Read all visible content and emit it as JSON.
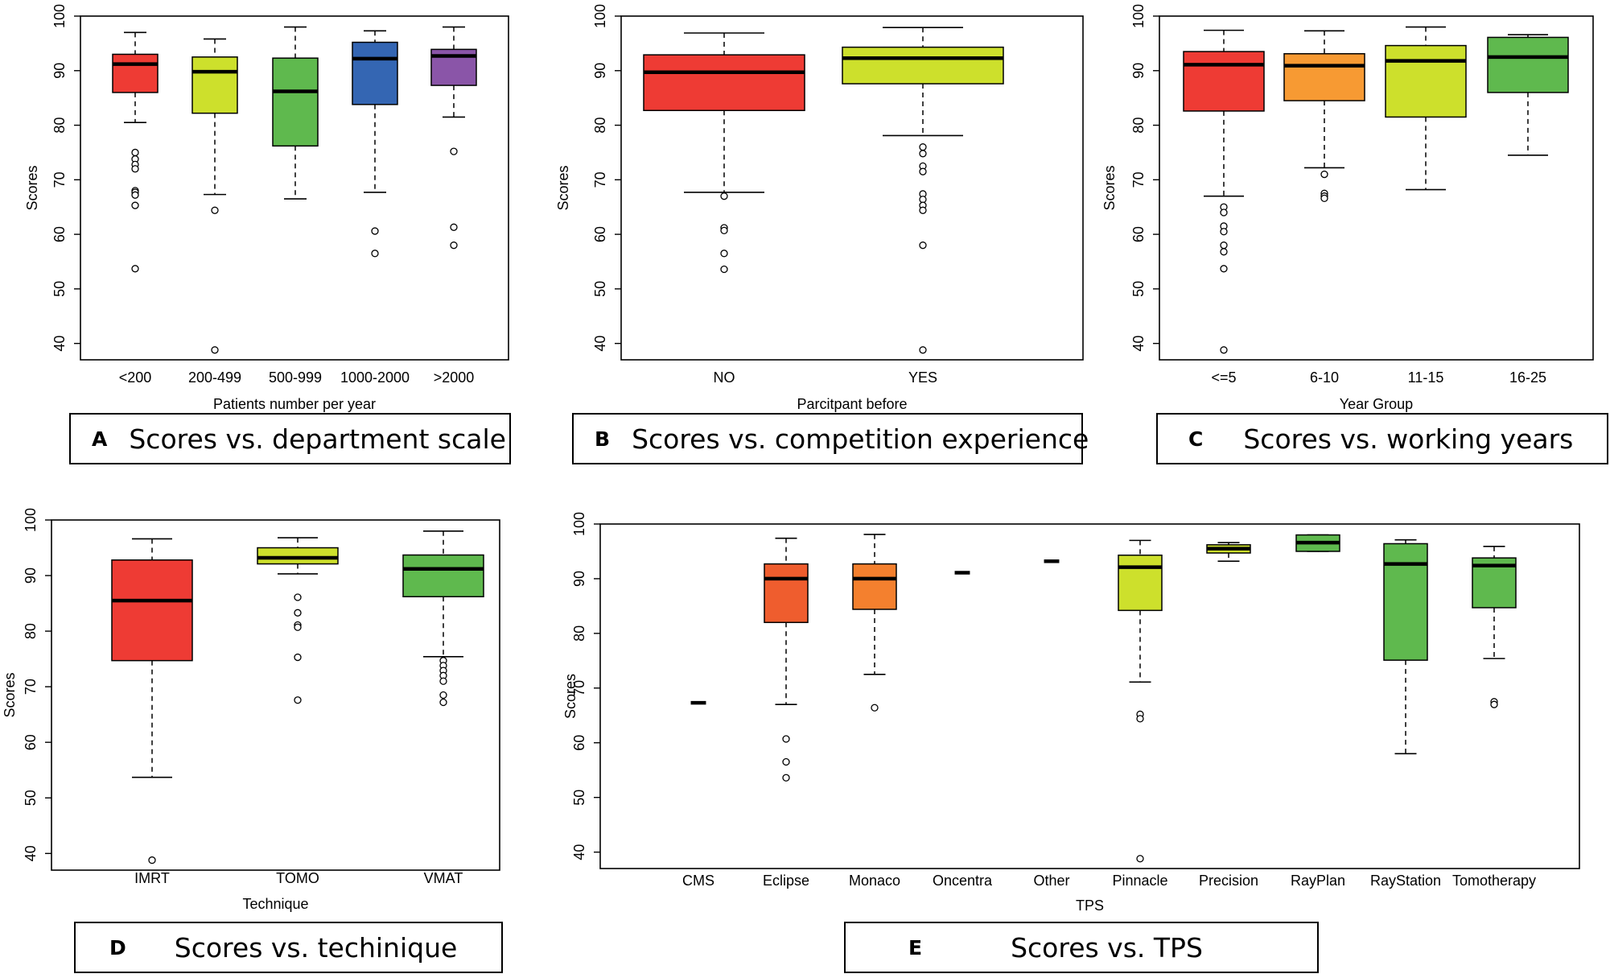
{
  "colors": {
    "red": "#ee3b34",
    "lime": "#cde02c",
    "green": "#5fb94e",
    "blue": "#3466b3",
    "purple": "#8a55a8",
    "orange": "#f79a33",
    "orange_red": "#ef5d2e",
    "orange2": "#f4802e"
  },
  "captions": [
    {
      "letter": "A",
      "text": "Scores vs. department scale"
    },
    {
      "letter": "B",
      "text": "Scores vs. competition experience"
    },
    {
      "letter": "C",
      "text": "Scores vs. working years"
    },
    {
      "letter": "D",
      "text": "Scores vs. techinique"
    },
    {
      "letter": "E",
      "text": "Scores vs. TPS"
    }
  ],
  "chart_data": [
    {
      "id": "A",
      "type": "boxplot",
      "ylabel": "Scores",
      "xlabel": "Patients number per year",
      "ylim": [
        37,
        100
      ],
      "yticks": [
        40,
        50,
        60,
        70,
        80,
        90,
        100
      ],
      "categories": [
        "<200",
        "200-499",
        "500-999",
        "1000-2000",
        ">2000"
      ],
      "boxes": [
        {
          "label": "<200",
          "color": "red",
          "min": 80.5,
          "q1": 86,
          "median": 91.2,
          "q3": 93,
          "max": 97,
          "outliers": [
            75,
            73.8,
            72.8,
            72,
            68,
            67.7,
            67.2,
            65.3,
            53.7
          ]
        },
        {
          "label": "200-499",
          "color": "lime",
          "min": 67.3,
          "q1": 82.2,
          "median": 89.8,
          "q3": 92.5,
          "max": 95.8,
          "outliers": [
            64.4,
            38.8
          ]
        },
        {
          "label": "500-999",
          "color": "green",
          "min": 66.5,
          "q1": 76.2,
          "median": 86.2,
          "q3": 92.3,
          "max": 98,
          "outliers": []
        },
        {
          "label": "1000-2000",
          "color": "blue",
          "min": 67.7,
          "q1": 83.8,
          "median": 92.2,
          "q3": 95.2,
          "max": 97.3,
          "outliers": [
            60.6,
            56.5
          ]
        },
        {
          "label": ">2000",
          "color": "purple",
          "min": 81.5,
          "q1": 87.3,
          "median": 92.7,
          "q3": 93.9,
          "max": 98,
          "outliers": [
            75.2,
            61.3,
            58
          ]
        }
      ]
    },
    {
      "id": "B",
      "type": "boxplot",
      "ylabel": "Scores",
      "xlabel": "Parcitpant before",
      "ylim": [
        37,
        100
      ],
      "yticks": [
        40,
        50,
        60,
        70,
        80,
        90,
        100
      ],
      "categories": [
        "NO",
        "YES"
      ],
      "boxes": [
        {
          "label": "NO",
          "color": "red",
          "min": 67.7,
          "q1": 82.7,
          "median": 89.7,
          "q3": 92.9,
          "max": 96.9,
          "outliers": [
            67,
            61.2,
            60.7,
            56.5,
            53.6
          ]
        },
        {
          "label": "YES",
          "color": "lime",
          "min": 78.1,
          "q1": 87.6,
          "median": 92.3,
          "q3": 94.3,
          "max": 97.9,
          "outliers": [
            76,
            74.8,
            72.5,
            71.5,
            67.4,
            66.4,
            65.3,
            64.4,
            58,
            38.8
          ]
        }
      ]
    },
    {
      "id": "C",
      "type": "boxplot",
      "ylabel": "Scores",
      "xlabel": "Year Group",
      "ylim": [
        37,
        100
      ],
      "yticks": [
        40,
        50,
        60,
        70,
        80,
        90,
        100
      ],
      "categories": [
        "<=5",
        "6-10",
        "11-15",
        "16-25"
      ],
      "boxes": [
        {
          "label": "<=5",
          "color": "red",
          "min": 67,
          "q1": 82.6,
          "median": 91.1,
          "q3": 93.5,
          "max": 97.4,
          "outliers": [
            65,
            64,
            61.5,
            60.5,
            58,
            56.8,
            53.7,
            38.8
          ]
        },
        {
          "label": "6-10",
          "color": "orange",
          "min": 72.2,
          "q1": 84.5,
          "median": 90.9,
          "q3": 93.1,
          "max": 97.3,
          "outliers": [
            71,
            67.5,
            67,
            66.6
          ]
        },
        {
          "label": "11-15",
          "color": "lime",
          "min": 68.2,
          "q1": 81.5,
          "median": 91.8,
          "q3": 94.6,
          "max": 98,
          "outliers": []
        },
        {
          "label": "16-25",
          "color": "green",
          "min": 74.5,
          "q1": 86,
          "median": 92.5,
          "q3": 96.1,
          "max": 96.6,
          "outliers": []
        }
      ]
    },
    {
      "id": "D",
      "type": "boxplot",
      "ylabel": "Scores",
      "xlabel": "Technique",
      "ylim": [
        37,
        100
      ],
      "yticks": [
        40,
        50,
        60,
        70,
        80,
        90,
        100
      ],
      "categories": [
        "IMRT",
        "TOMO",
        "VMAT"
      ],
      "boxes": [
        {
          "label": "IMRT",
          "color": "red",
          "min": 53.7,
          "q1": 74.7,
          "median": 85.5,
          "q3": 92.8,
          "max": 96.6,
          "outliers": [
            38.8
          ]
        },
        {
          "label": "TOMO",
          "color": "lime",
          "min": 90.3,
          "q1": 92.1,
          "median": 93.2,
          "q3": 95,
          "max": 96.8,
          "outliers": [
            86.1,
            83.3,
            81.1,
            80.7,
            75.3,
            67.6
          ]
        },
        {
          "label": "VMAT",
          "color": "green",
          "min": 75.4,
          "q1": 86.2,
          "median": 91.2,
          "q3": 93.7,
          "max": 98,
          "outliers": [
            74.7,
            73.8,
            72.9,
            72,
            71,
            68.5,
            67.2
          ]
        }
      ]
    },
    {
      "id": "E",
      "type": "boxplot",
      "ylabel": "Scores",
      "xlabel": "TPS",
      "ylim": [
        37,
        100
      ],
      "yticks": [
        40,
        50,
        60,
        70,
        80,
        90,
        100
      ],
      "categories": [
        "CMS",
        "Eclipse",
        "Monaco",
        "Oncentra",
        "Other",
        "Pinnacle",
        "Precision",
        "RayPlan",
        "RayStation",
        "Tomotherapy"
      ],
      "boxes": [
        {
          "label": "CMS",
          "color": "red",
          "min": 67.3,
          "q1": 67.3,
          "median": 67.3,
          "q3": 67.3,
          "max": 67.3,
          "outliers": []
        },
        {
          "label": "Eclipse",
          "color": "orange_red",
          "min": 67,
          "q1": 82,
          "median": 90,
          "q3": 92.7,
          "max": 97.4,
          "outliers": [
            60.7,
            56.5,
            53.6
          ]
        },
        {
          "label": "Monaco",
          "color": "orange2",
          "min": 72.5,
          "q1": 84.4,
          "median": 90,
          "q3": 92.7,
          "max": 98.1,
          "outliers": [
            66.4
          ]
        },
        {
          "label": "Oncentra",
          "color": "orange",
          "min": 91.1,
          "q1": 91.1,
          "median": 91.1,
          "q3": 91.1,
          "max": 91.1,
          "outliers": []
        },
        {
          "label": "Other",
          "color": "orange",
          "min": 93.2,
          "q1": 93.2,
          "median": 93.2,
          "q3": 93.2,
          "max": 93.2,
          "outliers": []
        },
        {
          "label": "Pinnacle",
          "color": "lime",
          "min": 71.1,
          "q1": 84.2,
          "median": 92.1,
          "q3": 94.3,
          "max": 97,
          "outliers": [
            65.2,
            64.4,
            38.8
          ]
        },
        {
          "label": "Precision",
          "color": "lime",
          "min": 93.2,
          "q1": 94.7,
          "median": 95.5,
          "q3": 96.2,
          "max": 96.6,
          "outliers": []
        },
        {
          "label": "RayPlan",
          "color": "green",
          "min": 95,
          "q1": 95,
          "median": 96.6,
          "q3": 98,
          "max": 98,
          "outliers": []
        },
        {
          "label": "RayStation",
          "color": "green",
          "min": 58,
          "q1": 75.1,
          "median": 92.7,
          "q3": 96.4,
          "max": 97.1,
          "outliers": []
        },
        {
          "label": "Tomotherapy",
          "color": "green",
          "min": 75.4,
          "q1": 84.7,
          "median": 92.4,
          "q3": 93.8,
          "max": 95.9,
          "outliers": [
            67.5,
            67
          ]
        }
      ]
    }
  ]
}
